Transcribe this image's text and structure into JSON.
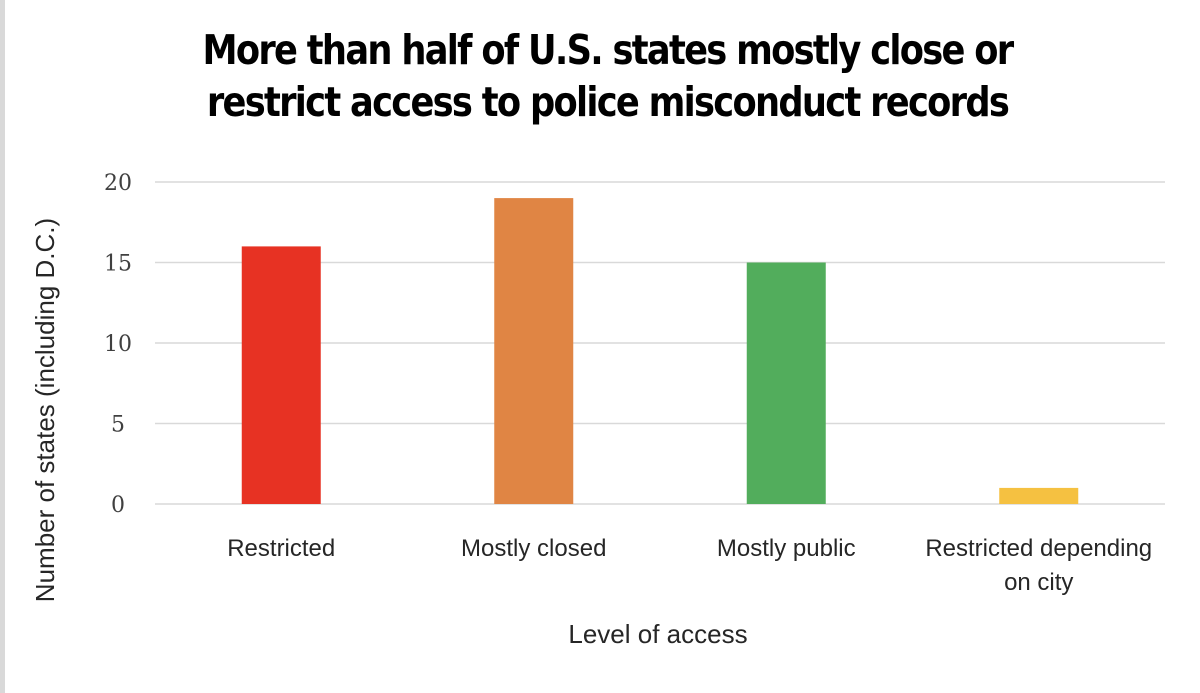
{
  "chart_data": {
    "type": "bar",
    "title": {
      "line1": "More than half of U.S. states mostly close or",
      "line2": "restrict access to police misconduct records"
    },
    "xlabel": "Level of access",
    "ylabel": "Number of states (including D.C.)",
    "ylim": [
      0,
      20
    ],
    "yticks": [
      "0",
      "5",
      "10",
      "15",
      "20"
    ],
    "grid": true,
    "legend": "none",
    "categories": [
      [
        "Restricted"
      ],
      [
        "Mostly closed"
      ],
      [
        "Mostly public"
      ],
      [
        "Restricted depending",
        "on city"
      ]
    ],
    "values": [
      16,
      19,
      15,
      1
    ],
    "colors": [
      "#e73223",
      "#e08544",
      "#52ad5c",
      "#f5c141"
    ]
  }
}
